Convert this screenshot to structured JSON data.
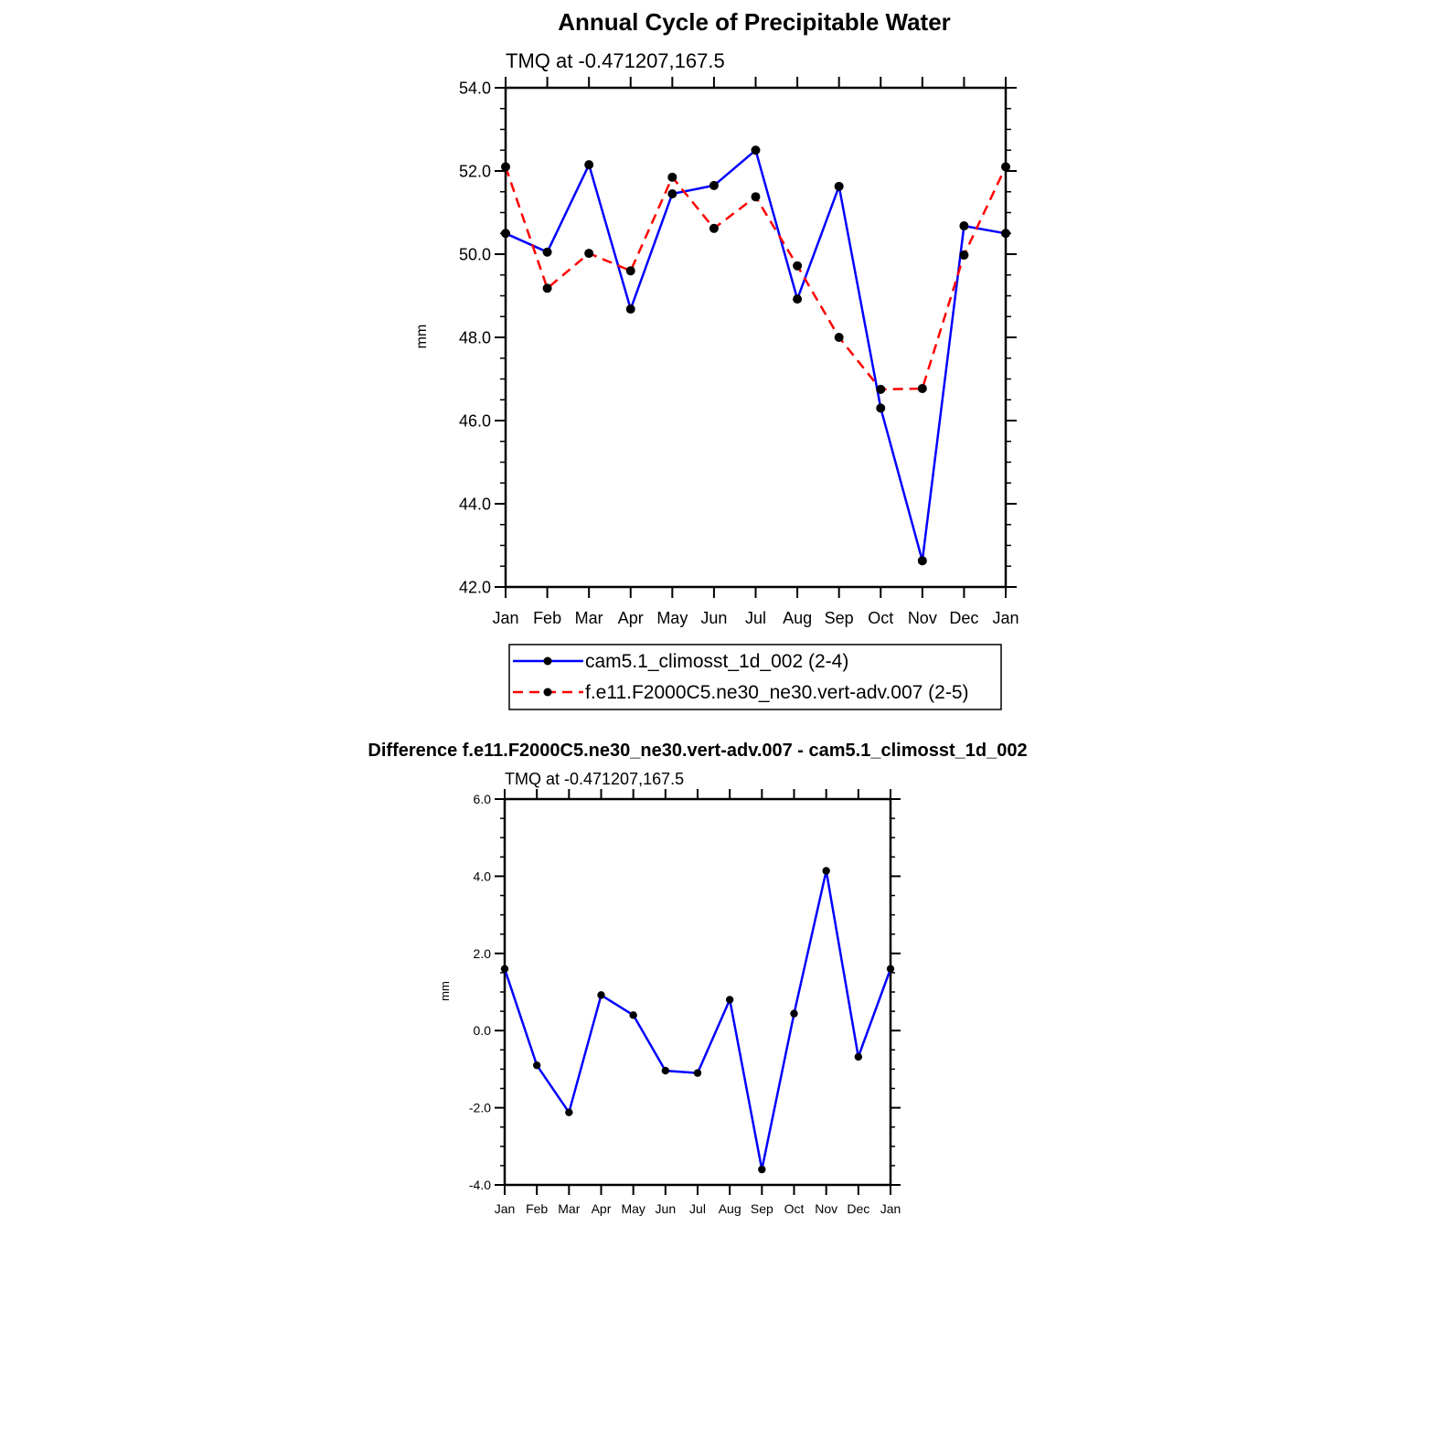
{
  "chart_data": [
    {
      "type": "line",
      "title": "Annual Cycle of Precipitable Water",
      "subtitle": "TMQ at -0.471207,167.5",
      "xlabel": "",
      "ylabel": "mm",
      "categories": [
        "Jan",
        "Feb",
        "Mar",
        "Apr",
        "May",
        "Jun",
        "Jul",
        "Aug",
        "Sep",
        "Oct",
        "Nov",
        "Dec",
        "Jan"
      ],
      "ylim": [
        42.0,
        54.0
      ],
      "yticks": [
        42.0,
        44.0,
        46.0,
        48.0,
        50.0,
        52.0,
        54.0
      ],
      "ytick_labels": [
        "42.0",
        "44.0",
        "46.0",
        "48.0",
        "50.0",
        "52.0",
        "54.0"
      ],
      "grid": false,
      "legend_position": "bottom",
      "series": [
        {
          "name": "cam5.1_climosst_1d_002 (2-4)",
          "color": "#0000ff",
          "dash": "solid",
          "values": [
            50.5,
            50.05,
            52.15,
            48.68,
            51.45,
            51.65,
            52.5,
            48.92,
            51.63,
            46.3,
            42.63,
            50.68,
            50.5
          ]
        },
        {
          "name": "f.e11.F2000C5.ne30_ne30.vert-adv.007 (2-5)",
          "color": "#ff0000",
          "dash": "dashed",
          "values": [
            52.1,
            49.18,
            50.02,
            49.6,
            51.85,
            50.62,
            51.38,
            49.72,
            48.0,
            46.75,
            46.77,
            49.98,
            52.1
          ]
        }
      ]
    },
    {
      "type": "line",
      "title": "Difference f.e11.F2000C5.ne30_ne30.vert-adv.007 - cam5.1_climosst_1d_002",
      "subtitle": "TMQ at -0.471207,167.5",
      "xlabel": "",
      "ylabel": "mm",
      "categories": [
        "Jan",
        "Feb",
        "Mar",
        "Apr",
        "May",
        "Jun",
        "Jul",
        "Aug",
        "Sep",
        "Oct",
        "Nov",
        "Dec",
        "Jan"
      ],
      "ylim": [
        -4.0,
        6.0
      ],
      "yticks": [
        -4.0,
        -2.0,
        0.0,
        2.0,
        4.0,
        6.0
      ],
      "ytick_labels": [
        "-4.0",
        "-2.0",
        "0.0",
        "2.0",
        "4.0",
        "6.0"
      ],
      "grid": false,
      "series": [
        {
          "color": "#0000ff",
          "dash": "solid",
          "values": [
            1.6,
            -0.9,
            -2.12,
            0.92,
            0.4,
            -1.04,
            -1.1,
            0.8,
            -3.6,
            0.44,
            4.14,
            -0.68,
            1.6
          ]
        }
      ]
    }
  ]
}
